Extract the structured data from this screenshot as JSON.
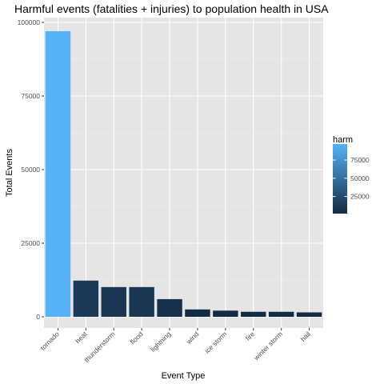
{
  "chart_data": {
    "type": "bar",
    "title": "Harmful events (fatalities + injuries) to population health in USA",
    "xlabel": "Event Type",
    "ylabel": "Total Events",
    "categories": [
      "tornado",
      "heat",
      "thunderstorm",
      "flood",
      "lightning",
      "wind",
      "ice storm",
      "fire",
      "winter storm",
      "hail"
    ],
    "values": [
      97000,
      12300,
      10100,
      10100,
      6000,
      2500,
      2100,
      1700,
      1700,
      1500
    ],
    "ylim": [
      0,
      101000
    ],
    "yticks": [
      0,
      25000,
      50000,
      75000,
      100000
    ],
    "ytick_labels": [
      "0",
      "25000",
      "50000",
      "75000",
      "100000"
    ],
    "grid": true,
    "legend": {
      "title": "harm",
      "placement": "right",
      "ticks": [
        25000,
        50000,
        75000
      ],
      "tick_labels": [
        "25000",
        "50000",
        "75000"
      ],
      "range": [
        1500,
        97000
      ]
    },
    "colors": {
      "low": "#132B43",
      "high": "#56B1F7",
      "panel_bg": "#e5e5e5",
      "grid_major": "#ffffff"
    }
  }
}
